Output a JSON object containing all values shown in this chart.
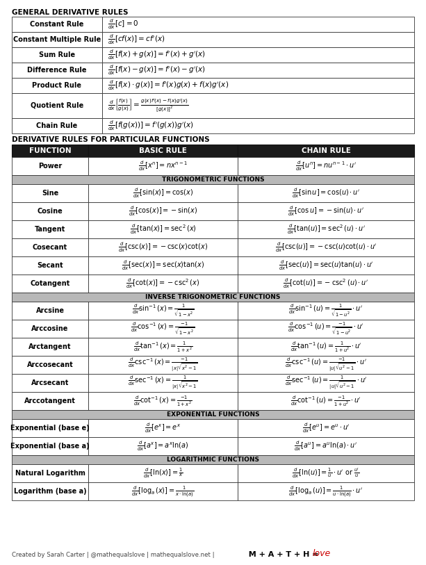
{
  "title1": "GENERAL DERIVATIVE RULES",
  "title2": "DERIVATIVE RULES FOR PARTICULAR FUNCTIONS",
  "bg_color": "#ffffff",
  "header_bg": "#1a1a1a",
  "header_text": "#ffffff",
  "section_bg": "#b8b8b8",
  "row_bg": "#ffffff",
  "border_color": "#333333",
  "general_rules": [
    [
      "Constant Rule",
      "$\\frac{d}{dx}[c] = 0$"
    ],
    [
      "Constant Multiple Rule",
      "$\\frac{d}{dx}[cf(x)] = cf'(x)$"
    ],
    [
      "Sum Rule",
      "$\\frac{d}{dx}[f(x) + g(x)] = f'(x) + g'(x)$"
    ],
    [
      "Difference Rule",
      "$\\frac{d}{dx}[f(x) - g(x)] = f'(x) - g'(x)$"
    ],
    [
      "Product Rule",
      "$\\frac{d}{dx}[f(x) \\cdot g(x)] = f'(x)g(x) + f(x)g'(x)$"
    ],
    [
      "Quotient Rule",
      "$\\frac{d}{dx}\\left[\\frac{f(x)}{g(x)}\\right] = \\frac{g(x)f'(x) - f(x)g'(x)}{[g(x)]^2}$"
    ],
    [
      "Chain Rule",
      "$\\frac{d}{dx}[f(g(x))] = f'(g(x))g'(x)$"
    ]
  ],
  "particular_headers": [
    "FUNCTION",
    "BASIC RULE",
    "CHAIN RULE"
  ],
  "sections": [
    {
      "name": null,
      "rows": [
        [
          "Power",
          "$\\frac{d}{dx}[x^n] = nx^{n-1}$",
          "$\\frac{d}{dx}[u^n] = nu^{n-1} \\cdot u'$"
        ]
      ]
    },
    {
      "name": "TRIGONOMETRIC FUNCTIONS",
      "rows": [
        [
          "Sine",
          "$\\frac{d}{dx}[\\sin(x)] = \\cos(x)$",
          "$\\frac{d}{dx}[\\sin u] = \\cos(u) \\cdot u'$"
        ],
        [
          "Cosine",
          "$\\frac{d}{dx}[\\cos(x)] = -\\sin(x)$",
          "$\\frac{d}{dx}[\\cos u] = -\\sin(u) \\cdot u'$"
        ],
        [
          "Tangent",
          "$\\frac{d}{dx}[\\tan(x)] = \\sec^2(x)$",
          "$\\frac{d}{dx}[\\tan(u)] = \\sec^2(u) \\cdot u'$"
        ],
        [
          "Cosecant",
          "$\\frac{d}{dx}[\\csc(x)] = -\\csc(x)\\cot(x)$",
          "$\\frac{d}{dx}[\\csc(u)] = -\\csc(u)\\cot(u) \\cdot u'$"
        ],
        [
          "Secant",
          "$\\frac{d}{dx}[\\sec(x)] = \\sec(x)\\tan(x)$",
          "$\\frac{d}{dx}[\\sec(u)] = \\sec(u)\\tan(u) \\cdot u'$"
        ],
        [
          "Cotangent",
          "$\\frac{d}{dx}[\\cot(x)] = -\\csc^2(x)$",
          "$\\frac{d}{dx}[\\cot(u)] = -\\csc^2(u) \\cdot u'$"
        ]
      ]
    },
    {
      "name": "INVERSE TRIGONOMETRIC FUNCTIONS",
      "rows": [
        [
          "Arcsine",
          "$\\frac{d}{dx}\\sin^{-1}(x) = \\frac{1}{\\sqrt{1-x^2}}$",
          "$\\frac{d}{dx}\\sin^{-1}(u) = \\frac{1}{\\sqrt{1-u^2}} \\cdot u'$"
        ],
        [
          "Arccosine",
          "$\\frac{d}{dx}\\cos^{-1}(x) = \\frac{-1}{\\sqrt{1-x^2}}$",
          "$\\frac{d}{dx}\\cos^{-1}(u) = \\frac{-1}{\\sqrt{1-u^2}} \\cdot u'$"
        ],
        [
          "Arctangent",
          "$\\frac{d}{dx}\\tan^{-1}(x) = \\frac{1}{1+x^2}$",
          "$\\frac{d}{dx}\\tan^{-1}(u) = \\frac{1}{1+u^2} \\cdot u'$"
        ],
        [
          "Arccosecant",
          "$\\frac{d}{dx}\\csc^{-1}(x) = \\frac{-1}{|x|\\sqrt{x^2-1}}$",
          "$\\frac{d}{dx}\\csc^{-1}(u) = \\frac{-1}{|u|\\sqrt{u^2-1}} \\cdot u'$"
        ],
        [
          "Arcsecant",
          "$\\frac{d}{dx}\\sec^{-1}(x) = \\frac{1}{|x|\\sqrt{x^2-1}}$",
          "$\\frac{d}{dx}\\sec^{-1}(u) = \\frac{1}{|u|\\sqrt{u^2-1}} \\cdot u'$"
        ],
        [
          "Arccotangent",
          "$\\frac{d}{dx}\\cot^{-1}(x) = \\frac{-1}{1+x^2}$",
          "$\\frac{d}{dx}\\cot^{-1}(u) = \\frac{-1}{1+u^2} \\cdot u'$"
        ]
      ]
    },
    {
      "name": "EXPONENTIAL FUNCTIONS",
      "rows": [
        [
          "Exponential (base e)",
          "$\\frac{d}{dx}[e^x] = e^x$",
          "$\\frac{d}{dx}[e^u] = e^u \\cdot u'$"
        ],
        [
          "Exponential (base a)",
          "$\\frac{d}{dx}[a^x] = a^x\\ln(a)$",
          "$\\frac{d}{dx}[a^u] = a^u\\ln(a) \\cdot u'$"
        ]
      ]
    },
    {
      "name": "LOGARITHMIC FUNCTIONS",
      "rows": [
        [
          "Natural Logarithm",
          "$\\frac{d}{dx}[\\ln(x)] = \\frac{1}{x}$",
          "$\\frac{d}{dx}[\\ln(u)] = \\frac{1}{u} \\cdot u'$ or $\\frac{u'}{u}$"
        ],
        [
          "Logarithm (base a)",
          "$\\frac{d}{dx}[\\log_a(x)] = \\frac{1}{x \\cdot \\ln(a)}$",
          "$\\frac{d}{dx}[\\log_a(u)] = \\frac{1}{u \\cdot \\ln(a)} \\cdot u'$"
        ]
      ]
    }
  ],
  "footer_left": "Created by Sarah Carter | @mathequalslove | mathequalslove.net |",
  "footer_math": "M + A + T + H =",
  "footer_love": "love"
}
